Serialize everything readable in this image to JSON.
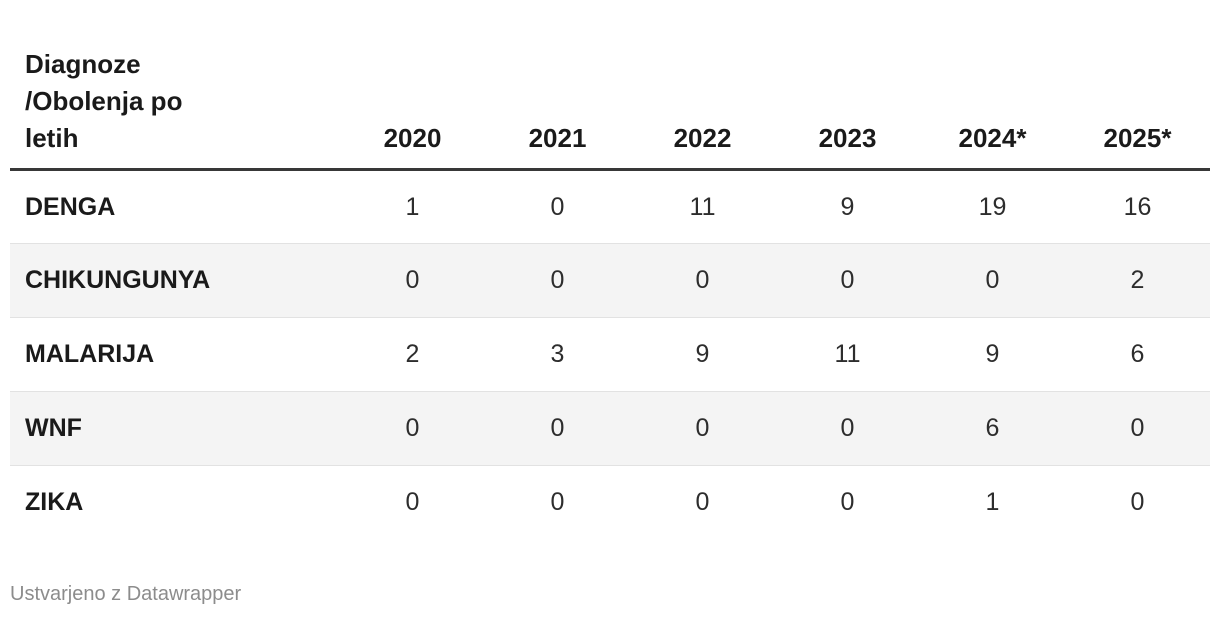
{
  "header": {
    "row_header_title": "Diagnoze\n/Obolenja po\nletih",
    "year_columns": [
      "2020",
      "2021",
      "2022",
      "2023",
      "2024*",
      "2025*"
    ]
  },
  "rows": [
    {
      "label": "DENGA",
      "values": [
        "1",
        "0",
        "11",
        "9",
        "19",
        "16"
      ]
    },
    {
      "label": "CHIKUNGUNYA",
      "values": [
        "0",
        "0",
        "0",
        "0",
        "0",
        "2"
      ]
    },
    {
      "label": "MALARIJA",
      "values": [
        "2",
        "3",
        "9",
        "11",
        "9",
        "6"
      ]
    },
    {
      "label": "WNF",
      "values": [
        "0",
        "0",
        "0",
        "0",
        "6",
        "0"
      ]
    },
    {
      "label": "ZIKA",
      "values": [
        "0",
        "0",
        "0",
        "0",
        "1",
        "0"
      ]
    }
  ],
  "footer": {
    "attribution": "Ustvarjeno z Datawrapper"
  },
  "colors": {
    "text_dark": "#1a1a1a",
    "text_value": "#2d2d2d",
    "header_rule": "#383838",
    "zebra_row_bg": "#f4f4f4",
    "row_divider": "#e2e2e2",
    "attribution_gray": "#8c8c8c",
    "background": "#ffffff"
  },
  "chart_data": {
    "type": "table",
    "title": "Diagnoze /Obolenja po letih",
    "categories": [
      "2020",
      "2021",
      "2022",
      "2023",
      "2024*",
      "2025*"
    ],
    "series": [
      {
        "name": "DENGA",
        "values": [
          1,
          0,
          11,
          9,
          19,
          16
        ]
      },
      {
        "name": "CHIKUNGUNYA",
        "values": [
          0,
          0,
          0,
          0,
          0,
          2
        ]
      },
      {
        "name": "MALARIJA",
        "values": [
          2,
          3,
          9,
          11,
          9,
          6
        ]
      },
      {
        "name": "WNF",
        "values": [
          0,
          0,
          0,
          0,
          6,
          0
        ]
      },
      {
        "name": "ZIKA",
        "values": [
          0,
          0,
          0,
          0,
          1,
          0
        ]
      }
    ],
    "layout": {
      "zebra_striping": true,
      "first_column_header": true,
      "attribution": "Ustvarjeno z Datawrapper"
    }
  }
}
